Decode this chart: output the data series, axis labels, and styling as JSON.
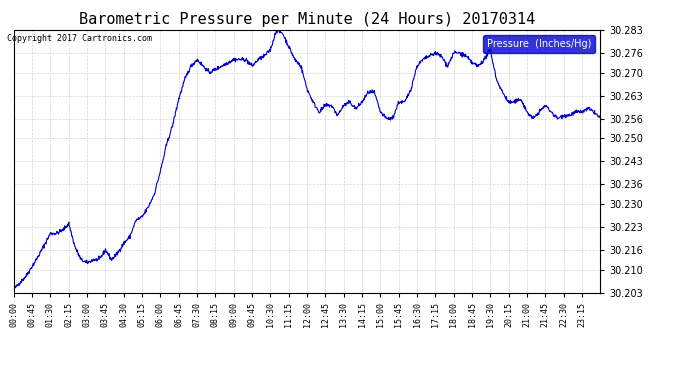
{
  "title": "Barometric Pressure per Minute (24 Hours) 20170314",
  "copyright": "Copyright 2017 Cartronics.com",
  "legend_label": "Pressure  (Inches/Hg)",
  "ylabel": "",
  "ylim": [
    30.203,
    30.283
  ],
  "yticks": [
    30.203,
    30.21,
    30.216,
    30.223,
    30.23,
    30.236,
    30.243,
    30.25,
    30.256,
    30.263,
    30.27,
    30.276,
    30.283
  ],
  "line_color": "#0000cc",
  "legend_bg": "#0000cc",
  "legend_fg": "#ffffff",
  "grid_color": "#cccccc",
  "bg_color": "#ffffff",
  "title_color": "#000000",
  "xtick_labels": [
    "00:00",
    "00:45",
    "01:30",
    "02:15",
    "03:00",
    "03:45",
    "04:30",
    "05:15",
    "06:00",
    "06:45",
    "07:30",
    "08:15",
    "09:00",
    "09:45",
    "10:30",
    "11:15",
    "12:00",
    "12:45",
    "13:30",
    "14:15",
    "15:00",
    "15:45",
    "16:30",
    "17:15",
    "18:00",
    "18:45",
    "19:30",
    "20:15",
    "21:00",
    "21:45",
    "22:30",
    "23:15"
  ],
  "pressure_keypoints": [
    [
      0,
      30.204
    ],
    [
      30,
      30.208
    ],
    [
      60,
      30.214
    ],
    [
      90,
      30.221
    ],
    [
      105,
      30.221
    ],
    [
      120,
      30.222
    ],
    [
      135,
      30.224
    ],
    [
      150,
      30.217
    ],
    [
      165,
      30.213
    ],
    [
      180,
      30.212
    ],
    [
      195,
      30.213
    ],
    [
      210,
      30.213
    ],
    [
      225,
      30.216
    ],
    [
      240,
      30.213
    ],
    [
      255,
      30.215
    ],
    [
      270,
      30.218
    ],
    [
      285,
      30.22
    ],
    [
      300,
      30.225
    ],
    [
      315,
      30.226
    ],
    [
      330,
      30.229
    ],
    [
      345,
      30.233
    ],
    [
      360,
      30.24
    ],
    [
      375,
      30.248
    ],
    [
      390,
      30.254
    ],
    [
      405,
      30.262
    ],
    [
      420,
      30.268
    ],
    [
      435,
      30.272
    ],
    [
      450,
      30.274
    ],
    [
      465,
      30.272
    ],
    [
      480,
      30.27
    ],
    [
      495,
      30.271
    ],
    [
      510,
      30.272
    ],
    [
      525,
      30.273
    ],
    [
      540,
      30.274
    ],
    [
      555,
      30.274
    ],
    [
      570,
      30.274
    ],
    [
      585,
      30.272
    ],
    [
      600,
      30.274
    ],
    [
      615,
      30.275
    ],
    [
      630,
      30.277
    ],
    [
      645,
      30.283
    ],
    [
      660,
      30.282
    ],
    [
      675,
      30.278
    ],
    [
      690,
      30.274
    ],
    [
      705,
      30.272
    ],
    [
      720,
      30.265
    ],
    [
      735,
      30.261
    ],
    [
      750,
      30.258
    ],
    [
      765,
      30.26
    ],
    [
      780,
      30.26
    ],
    [
      795,
      30.257
    ],
    [
      810,
      30.26
    ],
    [
      825,
      30.261
    ],
    [
      840,
      30.259
    ],
    [
      855,
      30.261
    ],
    [
      870,
      30.264
    ],
    [
      885,
      30.264
    ],
    [
      900,
      30.258
    ],
    [
      915,
      30.256
    ],
    [
      930,
      30.256
    ],
    [
      945,
      30.261
    ],
    [
      960,
      30.261
    ],
    [
      975,
      30.265
    ],
    [
      990,
      30.272
    ],
    [
      1005,
      30.274
    ],
    [
      1020,
      30.275
    ],
    [
      1035,
      30.276
    ],
    [
      1050,
      30.275
    ],
    [
      1065,
      30.272
    ],
    [
      1080,
      30.276
    ],
    [
      1095,
      30.276
    ],
    [
      1110,
      30.275
    ],
    [
      1125,
      30.273
    ],
    [
      1140,
      30.272
    ],
    [
      1155,
      30.274
    ],
    [
      1170,
      30.277
    ],
    [
      1185,
      30.268
    ],
    [
      1200,
      30.264
    ],
    [
      1215,
      30.261
    ],
    [
      1230,
      30.261
    ],
    [
      1245,
      30.262
    ],
    [
      1260,
      30.258
    ],
    [
      1275,
      30.256
    ],
    [
      1290,
      30.258
    ],
    [
      1305,
      30.26
    ],
    [
      1320,
      30.258
    ],
    [
      1335,
      30.256
    ],
    [
      1350,
      30.257
    ],
    [
      1365,
      30.257
    ],
    [
      1380,
      30.258
    ],
    [
      1395,
      30.258
    ],
    [
      1410,
      30.259
    ],
    [
      1425,
      30.258
    ],
    [
      1440,
      30.256
    ]
  ]
}
